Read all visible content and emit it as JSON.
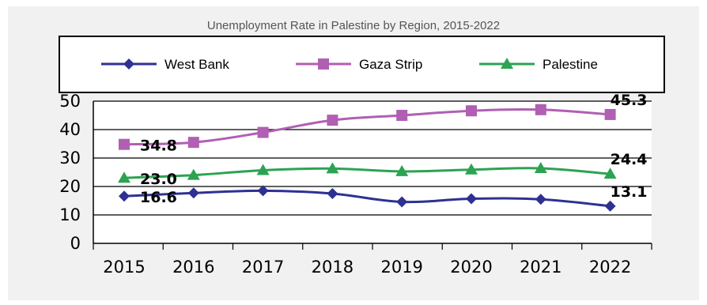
{
  "chart_data": {
    "type": "line",
    "title": "Unemployment Rate in Palestine by Region, 2015-2022",
    "xlabel": "",
    "ylabel": "",
    "x": [
      "2015",
      "2016",
      "2017",
      "2018",
      "2019",
      "2020",
      "2021",
      "2022"
    ],
    "ylim": [
      0,
      50
    ],
    "yticks": [
      "0",
      "10",
      "20",
      "30",
      "40",
      "50"
    ],
    "grid": true,
    "legend_position": "top",
    "series": [
      {
        "name": "West Bank",
        "color": "#2e3192",
        "marker": "diamond",
        "values": [
          16.6,
          17.7,
          18.5,
          17.5,
          14.6,
          15.7,
          15.5,
          13.1
        ]
      },
      {
        "name": "Gaza Strip",
        "color": "#b05fb3",
        "marker": "square",
        "values": [
          34.8,
          35.5,
          39.0,
          43.3,
          45.0,
          46.6,
          47.0,
          45.3
        ]
      },
      {
        "name": "Palestine",
        "color": "#2ca352",
        "marker": "triangle",
        "values": [
          23.0,
          24.0,
          25.7,
          26.3,
          25.3,
          25.9,
          26.4,
          24.4
        ]
      }
    ],
    "annotations": [
      {
        "series": 1,
        "index": 0,
        "text": "34.8"
      },
      {
        "series": 2,
        "index": 0,
        "text": "23.0"
      },
      {
        "series": 0,
        "index": 0,
        "text": "16.6"
      },
      {
        "series": 1,
        "index": 7,
        "text": "45.3"
      },
      {
        "series": 2,
        "index": 7,
        "text": "24.4"
      },
      {
        "series": 0,
        "index": 7,
        "text": "13.1"
      }
    ]
  }
}
